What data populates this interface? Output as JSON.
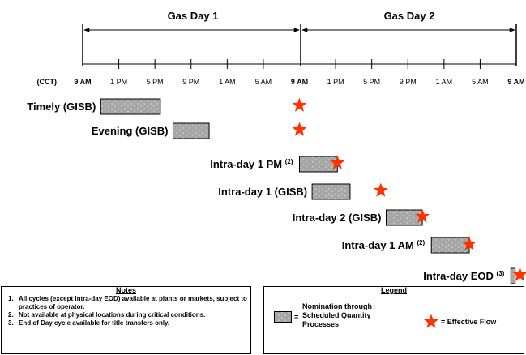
{
  "header": {
    "gas_day_1": "Gas Day 1",
    "gas_day_2": "Gas Day 2"
  },
  "timeline": {
    "zone_label": "(CCT)",
    "ticks": [
      "9 AM",
      "1 PM",
      "5 PM",
      "9 PM",
      "1 AM",
      "5 AM",
      "9 AM",
      "1 PM",
      "5 PM",
      "9 PM",
      "1 AM",
      "5 AM",
      "9 AM"
    ],
    "bold_ticks": [
      0,
      6,
      12
    ]
  },
  "cycles": [
    {
      "label": "Timely (GISB)",
      "sup": "",
      "start": 0.5,
      "end": 2.15,
      "star": 6.0
    },
    {
      "label": "Evening (GISB)",
      "sup": "",
      "start": 2.5,
      "end": 3.5,
      "star": 6.0
    },
    {
      "label": "Intra-day 1 PM",
      "sup": "(2)",
      "start": 6.0,
      "end": 7.05,
      "star": 7.05
    },
    {
      "label": "Intra-day 1 (GISB)",
      "sup": "",
      "start": 6.35,
      "end": 7.4,
      "star": 8.25
    },
    {
      "label": "Intra-day 2 (GISB)",
      "sup": "",
      "start": 8.4,
      "end": 9.4,
      "star": 9.4
    },
    {
      "label": "Intra-day 1 AM",
      "sup": "(2)",
      "start": 9.65,
      "end": 10.7,
      "star": 10.7
    },
    {
      "label": "Intra-day EOD",
      "sup": "(3)",
      "start": 11.85,
      "end": 11.97,
      "star": 12.1
    }
  ],
  "notes": {
    "title": "Notes",
    "items": [
      {
        "num": "1.",
        "text": "All cycles (except Intra-day EOD) available at plants or markets, subject to practices of operator."
      },
      {
        "num": "2.",
        "text": "Not available at physical locations during critical conditions."
      },
      {
        "num": "3.",
        "text": "End of Day cycle available for title transfers only."
      }
    ]
  },
  "legend": {
    "title": "Legend",
    "equals": "=",
    "nomination": "Nomination through Scheduled Quantity Processes",
    "effective_flow": "= Effective Flow"
  },
  "colors": {
    "bar_fill": "#a6a6a6",
    "star": "#ff3300",
    "line": "#000000"
  }
}
